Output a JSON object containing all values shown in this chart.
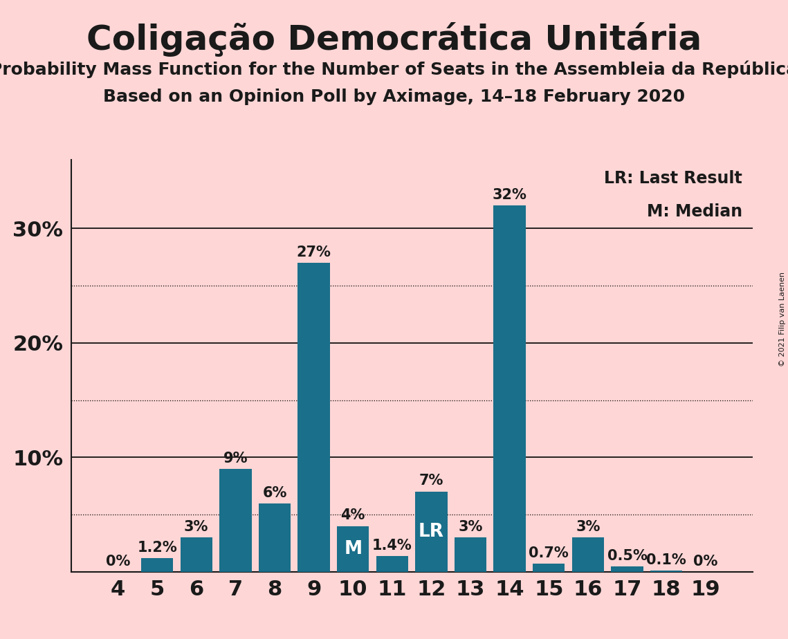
{
  "title": "Coligação Democrática Unitária",
  "subtitle1": "Probability Mass Function for the Number of Seats in the Assembleia da República",
  "subtitle2": "Based on an Opinion Poll by Aximage, 14–18 February 2020",
  "copyright": "© 2021 Filip van Laenen",
  "seats": [
    4,
    5,
    6,
    7,
    8,
    9,
    10,
    11,
    12,
    13,
    14,
    15,
    16,
    17,
    18,
    19
  ],
  "probabilities": [
    0.0,
    1.2,
    3.0,
    9.0,
    6.0,
    27.0,
    4.0,
    1.4,
    7.0,
    3.0,
    32.0,
    0.7,
    3.0,
    0.5,
    0.1,
    0.0
  ],
  "labels": [
    "0%",
    "1.2%",
    "3%",
    "9%",
    "6%",
    "27%",
    "4%",
    "1.4%",
    "7%",
    "3%",
    "32%",
    "0.7%",
    "3%",
    "0.5%",
    "0.1%",
    "0%"
  ],
  "bar_color": "#1a6f8a",
  "background_color": "#ffd6d6",
  "median_seat": 10,
  "lr_seat": 12,
  "dotted_lines": [
    5,
    15,
    25
  ],
  "solid_lines": [
    10,
    20,
    30
  ],
  "legend_lr": "LR: Last Result",
  "legend_m": "M: Median",
  "axis_color": "#1a1a1a",
  "title_fontsize": 36,
  "subtitle_fontsize": 18,
  "ytick_fontsize": 22,
  "xtick_fontsize": 22,
  "bar_label_fontsize": 15,
  "legend_fontsize": 17,
  "copyright_fontsize": 8,
  "ylim_max": 36
}
